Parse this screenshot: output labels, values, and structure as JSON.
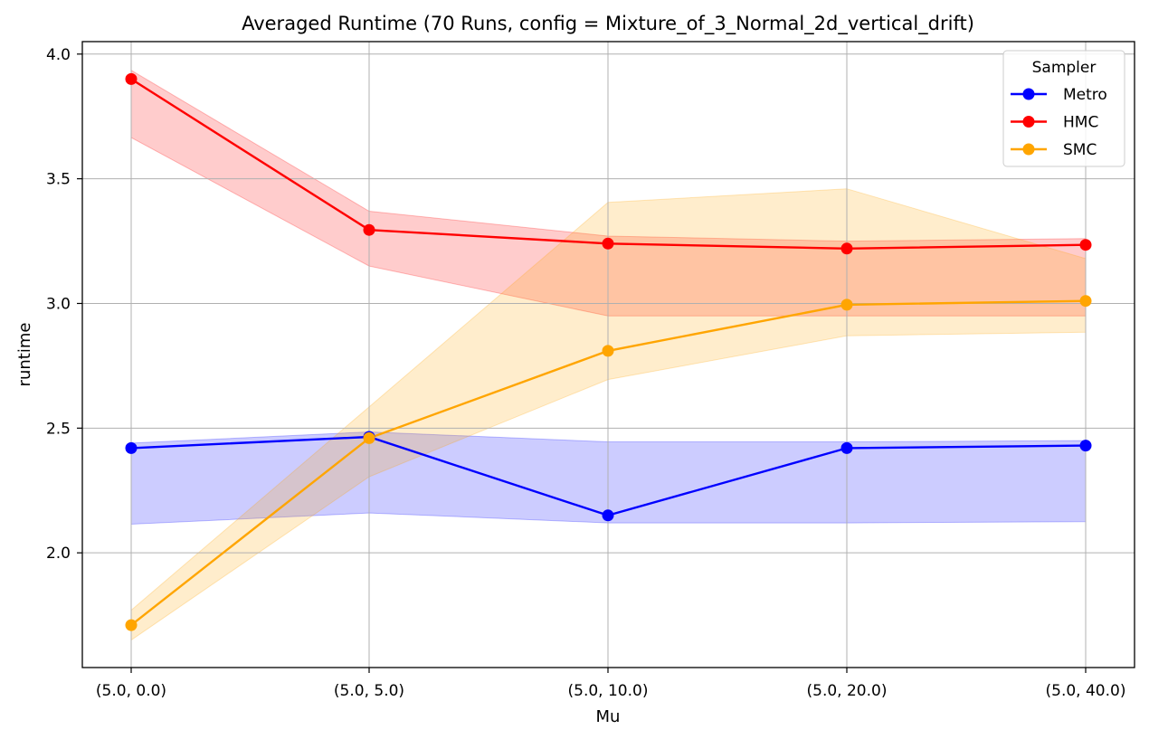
{
  "chart_data": {
    "type": "line",
    "title": "Averaged Runtime (70 Runs, config = Mixture_of_3_Normal_2d_vertical_drift)",
    "xlabel": "Mu",
    "ylabel": "runtime",
    "categories": [
      "(5.0, 0.0)",
      "(5.0, 5.0)",
      "(5.0, 10.0)",
      "(5.0, 20.0)",
      "(5.0, 40.0)"
    ],
    "ylim": [
      1.54,
      4.05
    ],
    "yticks": [
      2.0,
      2.5,
      3.0,
      3.5,
      4.0
    ],
    "ytick_labels": [
      "2.0",
      "2.5",
      "3.0",
      "3.5",
      "4.0"
    ],
    "grid": true,
    "legend": {
      "title": "Sampler",
      "position": "top-right"
    },
    "series": [
      {
        "name": "Metro",
        "color": "#0000ff",
        "band_color": "#0000ff",
        "values": [
          2.42,
          2.465,
          2.15,
          2.42,
          2.43
        ],
        "lower": [
          2.115,
          2.16,
          2.12,
          2.12,
          2.125
        ],
        "upper": [
          2.44,
          2.485,
          2.445,
          2.445,
          2.45
        ]
      },
      {
        "name": "HMC",
        "color": "#ff0000",
        "band_color": "#ff0000",
        "values": [
          3.9,
          3.295,
          3.24,
          3.22,
          3.235
        ],
        "lower": [
          3.665,
          3.15,
          2.95,
          2.95,
          2.95
        ],
        "upper": [
          3.935,
          3.37,
          3.27,
          3.25,
          3.26
        ]
      },
      {
        "name": "SMC",
        "color": "#ffa500",
        "band_color": "#ffa500",
        "values": [
          1.71,
          2.46,
          2.81,
          2.995,
          3.01
        ],
        "lower": [
          1.65,
          2.305,
          2.695,
          2.87,
          2.885
        ],
        "upper": [
          1.77,
          2.585,
          3.405,
          3.46,
          3.18
        ]
      }
    ]
  }
}
